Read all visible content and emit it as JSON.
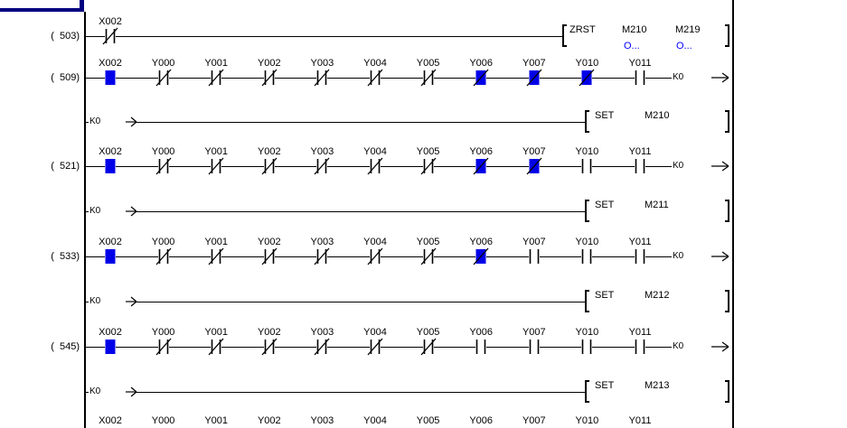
{
  "window": {
    "background": "#ffffff"
  },
  "colors": {
    "active_blue": "#0000e8",
    "comment_blue": "#0000ff",
    "frame_navy": "#000080",
    "wire_black": "#000000"
  },
  "ladder": {
    "rows": [
      {
        "kind": "rung",
        "step": "(  503)",
        "contacts": [
          {
            "device": "X002",
            "contact": "nc",
            "on": false,
            "col": 0
          }
        ],
        "instruction": {
          "op": "ZRST",
          "args": [
            "M210",
            "M219"
          ],
          "comments": [
            "O...",
            "O..."
          ]
        }
      },
      {
        "kind": "rung",
        "step": "(  509)",
        "contacts": [
          {
            "device": "X002",
            "contact": "no",
            "on": true,
            "col": 0
          },
          {
            "device": "Y000",
            "contact": "nc",
            "on": false,
            "col": 1
          },
          {
            "device": "Y001",
            "contact": "nc",
            "on": false,
            "col": 2
          },
          {
            "device": "Y002",
            "contact": "nc",
            "on": false,
            "col": 3
          },
          {
            "device": "Y003",
            "contact": "nc",
            "on": false,
            "col": 4
          },
          {
            "device": "Y004",
            "contact": "nc",
            "on": false,
            "col": 5
          },
          {
            "device": "Y005",
            "contact": "nc",
            "on": false,
            "col": 6
          },
          {
            "device": "Y006",
            "contact": "nc",
            "on": true,
            "col": 7
          },
          {
            "device": "Y007",
            "contact": "nc",
            "on": true,
            "col": 8
          },
          {
            "device": "Y010",
            "contact": "nc",
            "on": true,
            "col": 9
          },
          {
            "device": "Y011",
            "contact": "no",
            "on": false,
            "col": 10
          }
        ],
        "wrap_out": "K0"
      },
      {
        "kind": "continuation",
        "wrap_in": "K0",
        "instruction": {
          "op": "SET",
          "args": [
            "M210"
          ],
          "comments": []
        }
      },
      {
        "kind": "rung",
        "step": "(  521)",
        "contacts": [
          {
            "device": "X002",
            "contact": "no",
            "on": true,
            "col": 0
          },
          {
            "device": "Y000",
            "contact": "nc",
            "on": false,
            "col": 1
          },
          {
            "device": "Y001",
            "contact": "nc",
            "on": false,
            "col": 2
          },
          {
            "device": "Y002",
            "contact": "nc",
            "on": false,
            "col": 3
          },
          {
            "device": "Y003",
            "contact": "nc",
            "on": false,
            "col": 4
          },
          {
            "device": "Y004",
            "contact": "nc",
            "on": false,
            "col": 5
          },
          {
            "device": "Y005",
            "contact": "nc",
            "on": false,
            "col": 6
          },
          {
            "device": "Y006",
            "contact": "nc",
            "on": true,
            "col": 7
          },
          {
            "device": "Y007",
            "contact": "nc",
            "on": true,
            "col": 8
          },
          {
            "device": "Y010",
            "contact": "no",
            "on": false,
            "col": 9
          },
          {
            "device": "Y011",
            "contact": "no",
            "on": false,
            "col": 10
          }
        ],
        "wrap_out": "K0"
      },
      {
        "kind": "continuation",
        "wrap_in": "K0",
        "instruction": {
          "op": "SET",
          "args": [
            "M211"
          ],
          "comments": []
        }
      },
      {
        "kind": "rung",
        "step": "(  533)",
        "contacts": [
          {
            "device": "X002",
            "contact": "no",
            "on": true,
            "col": 0
          },
          {
            "device": "Y000",
            "contact": "nc",
            "on": false,
            "col": 1
          },
          {
            "device": "Y001",
            "contact": "nc",
            "on": false,
            "col": 2
          },
          {
            "device": "Y002",
            "contact": "nc",
            "on": false,
            "col": 3
          },
          {
            "device": "Y003",
            "contact": "nc",
            "on": false,
            "col": 4
          },
          {
            "device": "Y004",
            "contact": "nc",
            "on": false,
            "col": 5
          },
          {
            "device": "Y005",
            "contact": "nc",
            "on": false,
            "col": 6
          },
          {
            "device": "Y006",
            "contact": "nc",
            "on": true,
            "col": 7
          },
          {
            "device": "Y007",
            "contact": "no",
            "on": false,
            "col": 8
          },
          {
            "device": "Y010",
            "contact": "no",
            "on": false,
            "col": 9
          },
          {
            "device": "Y011",
            "contact": "no",
            "on": false,
            "col": 10
          }
        ],
        "wrap_out": "K0"
      },
      {
        "kind": "continuation",
        "wrap_in": "K0",
        "instruction": {
          "op": "SET",
          "args": [
            "M212"
          ],
          "comments": []
        }
      },
      {
        "kind": "rung",
        "step": "(  545)",
        "contacts": [
          {
            "device": "X002",
            "contact": "no",
            "on": true,
            "col": 0
          },
          {
            "device": "Y000",
            "contact": "nc",
            "on": false,
            "col": 1
          },
          {
            "device": "Y001",
            "contact": "nc",
            "on": false,
            "col": 2
          },
          {
            "device": "Y002",
            "contact": "nc",
            "on": false,
            "col": 3
          },
          {
            "device": "Y003",
            "contact": "nc",
            "on": false,
            "col": 4
          },
          {
            "device": "Y004",
            "contact": "nc",
            "on": false,
            "col": 5
          },
          {
            "device": "Y005",
            "contact": "nc",
            "on": false,
            "col": 6
          },
          {
            "device": "Y006",
            "contact": "no",
            "on": false,
            "col": 7
          },
          {
            "device": "Y007",
            "contact": "no",
            "on": false,
            "col": 8
          },
          {
            "device": "Y010",
            "contact": "no",
            "on": false,
            "col": 9
          },
          {
            "device": "Y011",
            "contact": "no",
            "on": false,
            "col": 10
          }
        ],
        "wrap_out": "K0"
      },
      {
        "kind": "continuation",
        "wrap_in": "K0",
        "instruction": {
          "op": "SET",
          "args": [
            "M213"
          ],
          "comments": []
        }
      },
      {
        "kind": "device_labels",
        "labels": [
          "X002",
          "Y000",
          "Y001",
          "Y002",
          "Y003",
          "Y004",
          "Y005",
          "Y006",
          "Y007",
          "Y010",
          "Y011"
        ]
      }
    ]
  }
}
